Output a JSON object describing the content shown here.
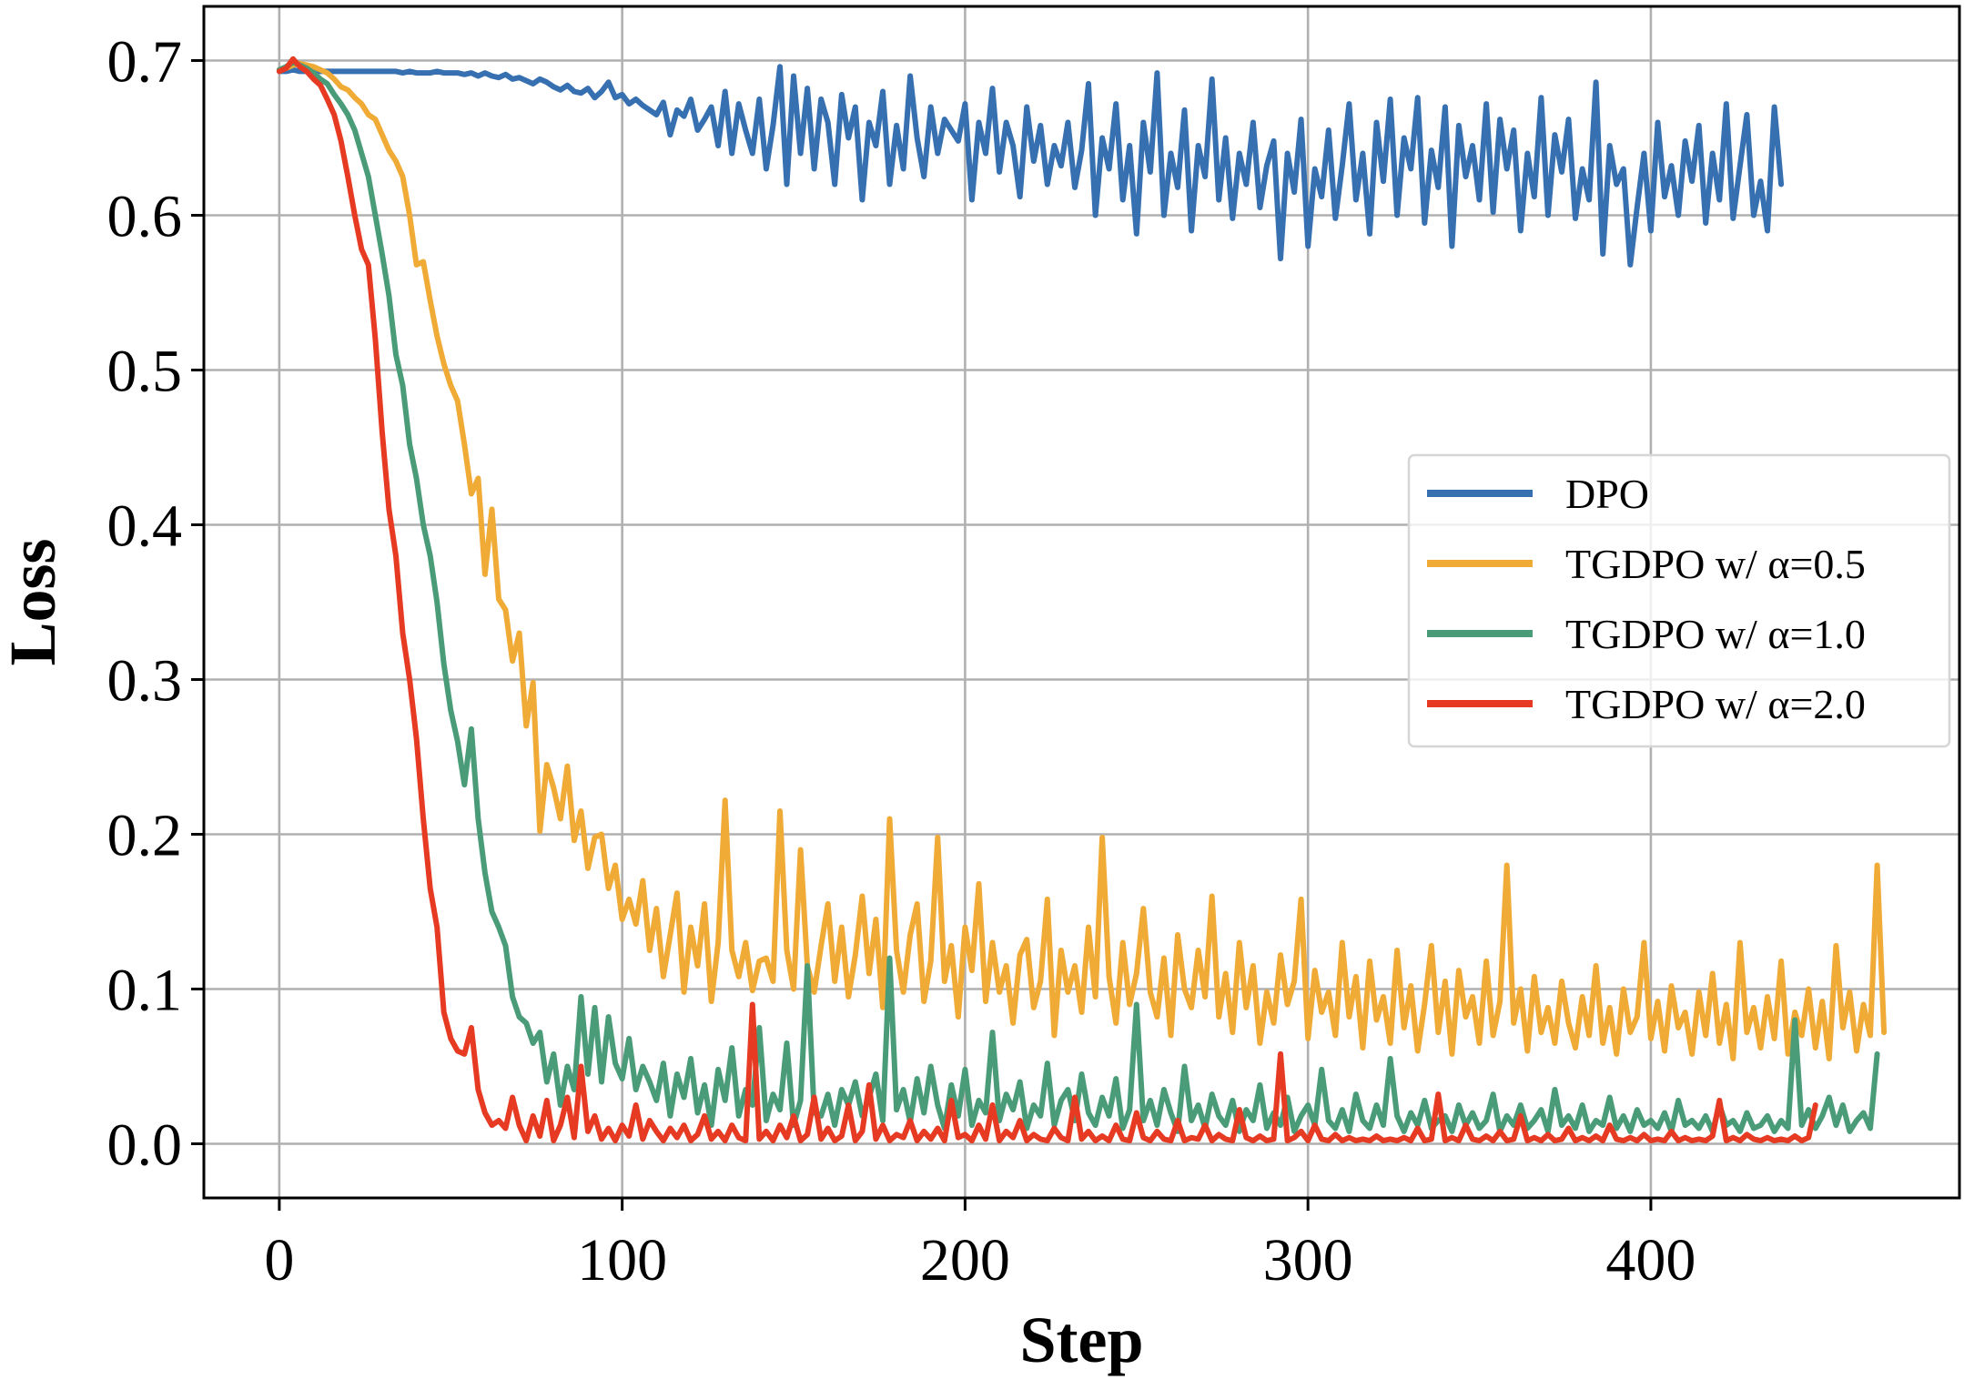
{
  "chart_data": {
    "type": "line",
    "title": "",
    "xlabel": "Step",
    "ylabel": "Loss",
    "xlim": [
      -22,
      490
    ],
    "ylim": [
      -0.035,
      0.735
    ],
    "grid": true,
    "legend_position": "center-right",
    "x_ticks": [
      0,
      100,
      200,
      300,
      400
    ],
    "x_tick_labels": [
      "0",
      "100",
      "200",
      "300",
      "400"
    ],
    "y_ticks": [
      0.0,
      0.1,
      0.2,
      0.3,
      0.4,
      0.5,
      0.6,
      0.7
    ],
    "y_tick_labels": [
      "0.0",
      "0.1",
      "0.2",
      "0.3",
      "0.4",
      "0.5",
      "0.6",
      "0.7"
    ],
    "x_step": 2,
    "series": [
      {
        "name": "DPO",
        "color": "#3670b1",
        "values": [
          0.693,
          0.693,
          0.694,
          0.693,
          0.693,
          0.693,
          0.693,
          0.693,
          0.693,
          0.693,
          0.693,
          0.693,
          0.693,
          0.693,
          0.693,
          0.693,
          0.693,
          0.693,
          0.692,
          0.693,
          0.692,
          0.692,
          0.692,
          0.693,
          0.692,
          0.692,
          0.692,
          0.691,
          0.692,
          0.69,
          0.692,
          0.69,
          0.689,
          0.691,
          0.688,
          0.689,
          0.687,
          0.685,
          0.688,
          0.686,
          0.683,
          0.681,
          0.684,
          0.68,
          0.679,
          0.682,
          0.676,
          0.68,
          0.686,
          0.676,
          0.678,
          0.672,
          0.675,
          0.671,
          0.668,
          0.665,
          0.673,
          0.652,
          0.668,
          0.664,
          0.675,
          0.655,
          0.662,
          0.67,
          0.645,
          0.68,
          0.64,
          0.672,
          0.655,
          0.64,
          0.675,
          0.63,
          0.658,
          0.696,
          0.62,
          0.69,
          0.64,
          0.682,
          0.63,
          0.675,
          0.66,
          0.62,
          0.678,
          0.65,
          0.67,
          0.61,
          0.66,
          0.645,
          0.68,
          0.62,
          0.658,
          0.63,
          0.69,
          0.65,
          0.625,
          0.67,
          0.64,
          0.662,
          0.655,
          0.648,
          0.672,
          0.61,
          0.66,
          0.64,
          0.682,
          0.628,
          0.66,
          0.645,
          0.612,
          0.67,
          0.635,
          0.658,
          0.62,
          0.645,
          0.632,
          0.66,
          0.618,
          0.642,
          0.685,
          0.6,
          0.65,
          0.63,
          0.672,
          0.61,
          0.645,
          0.588,
          0.66,
          0.628,
          0.692,
          0.6,
          0.64,
          0.618,
          0.668,
          0.59,
          0.645,
          0.625,
          0.688,
          0.61,
          0.65,
          0.598,
          0.64,
          0.62,
          0.66,
          0.605,
          0.632,
          0.648,
          0.572,
          0.64,
          0.615,
          0.662,
          0.58,
          0.63,
          0.612,
          0.655,
          0.598,
          0.632,
          0.672,
          0.61,
          0.64,
          0.588,
          0.66,
          0.622,
          0.675,
          0.6,
          0.65,
          0.63,
          0.676,
          0.595,
          0.642,
          0.618,
          0.67,
          0.58,
          0.658,
          0.625,
          0.645,
          0.61,
          0.672,
          0.602,
          0.662,
          0.63,
          0.655,
          0.59,
          0.64,
          0.612,
          0.676,
          0.6,
          0.652,
          0.628,
          0.662,
          0.598,
          0.63,
          0.61,
          0.686,
          0.575,
          0.645,
          0.62,
          0.63,
          0.568,
          0.605,
          0.64,
          0.59,
          0.66,
          0.612,
          0.632,
          0.6,
          0.648,
          0.622,
          0.658,
          0.595,
          0.64,
          0.61,
          0.672,
          0.598,
          0.632,
          0.665,
          0.6,
          0.622,
          0.59,
          0.67,
          0.62
        ]
      },
      {
        "name": "TGDPO w/ α=0.5",
        "color": "#f0aa36",
        "values": [
          0.694,
          0.695,
          0.697,
          0.698,
          0.697,
          0.696,
          0.694,
          0.692,
          0.688,
          0.683,
          0.681,
          0.676,
          0.672,
          0.665,
          0.662,
          0.652,
          0.642,
          0.635,
          0.625,
          0.6,
          0.568,
          0.57,
          0.545,
          0.522,
          0.504,
          0.49,
          0.48,
          0.452,
          0.42,
          0.43,
          0.368,
          0.41,
          0.352,
          0.345,
          0.312,
          0.33,
          0.27,
          0.298,
          0.202,
          0.245,
          0.23,
          0.21,
          0.244,
          0.196,
          0.215,
          0.178,
          0.198,
          0.2,
          0.165,
          0.18,
          0.145,
          0.158,
          0.142,
          0.17,
          0.125,
          0.152,
          0.108,
          0.135,
          0.162,
          0.098,
          0.14,
          0.115,
          0.155,
          0.092,
          0.13,
          0.222,
          0.125,
          0.108,
          0.13,
          0.099,
          0.118,
          0.12,
          0.105,
          0.215,
          0.125,
          0.1,
          0.19,
          0.115,
          0.098,
          0.128,
          0.155,
          0.105,
          0.14,
          0.095,
          0.122,
          0.16,
          0.11,
          0.145,
          0.088,
          0.21,
          0.125,
          0.098,
          0.135,
          0.155,
          0.092,
          0.118,
          0.198,
          0.105,
          0.128,
          0.082,
          0.14,
          0.112,
          0.168,
          0.092,
          0.13,
          0.098,
          0.115,
          0.078,
          0.122,
          0.132,
          0.088,
          0.105,
          0.158,
          0.07,
          0.125,
          0.098,
          0.115,
          0.085,
          0.14,
          0.095,
          0.198,
          0.108,
          0.078,
          0.13,
          0.09,
          0.11,
          0.152,
          0.098,
          0.082,
          0.12,
          0.07,
          0.135,
          0.1,
          0.088,
          0.125,
          0.095,
          0.16,
          0.082,
          0.11,
          0.072,
          0.13,
          0.088,
          0.115,
          0.065,
          0.098,
          0.078,
          0.122,
          0.09,
          0.105,
          0.158,
          0.068,
          0.112,
          0.085,
          0.098,
          0.07,
          0.13,
          0.082,
          0.108,
          0.062,
          0.118,
          0.08,
          0.095,
          0.065,
          0.125,
          0.075,
          0.102,
          0.06,
          0.09,
          0.128,
          0.072,
          0.105,
          0.058,
          0.112,
          0.082,
          0.095,
          0.065,
          0.118,
          0.07,
          0.092,
          0.18,
          0.078,
          0.1,
          0.06,
          0.108,
          0.072,
          0.088,
          0.065,
          0.105,
          0.078,
          0.062,
          0.095,
          0.07,
          0.115,
          0.065,
          0.088,
          0.058,
          0.1,
          0.072,
          0.082,
          0.13,
          0.068,
          0.092,
          0.06,
          0.102,
          0.075,
          0.085,
          0.058,
          0.098,
          0.07,
          0.11,
          0.065,
          0.09,
          0.055,
          0.13,
          0.072,
          0.088,
          0.062,
          0.095,
          0.068,
          0.118,
          0.058,
          0.085,
          0.07,
          0.1,
          0.062,
          0.092,
          0.055,
          0.128,
          0.075,
          0.098,
          0.06,
          0.09,
          0.07,
          0.18,
          0.072
        ]
      },
      {
        "name": "TGDPO w/ α=1.0",
        "color": "#4a9c79",
        "values": [
          0.694,
          0.696,
          0.699,
          0.697,
          0.695,
          0.692,
          0.688,
          0.685,
          0.678,
          0.672,
          0.665,
          0.655,
          0.64,
          0.625,
          0.6,
          0.575,
          0.548,
          0.51,
          0.49,
          0.452,
          0.43,
          0.4,
          0.38,
          0.35,
          0.31,
          0.28,
          0.26,
          0.232,
          0.268,
          0.21,
          0.175,
          0.15,
          0.14,
          0.128,
          0.095,
          0.082,
          0.078,
          0.065,
          0.072,
          0.04,
          0.058,
          0.025,
          0.05,
          0.035,
          0.095,
          0.045,
          0.088,
          0.04,
          0.082,
          0.052,
          0.042,
          0.068,
          0.035,
          0.05,
          0.04,
          0.028,
          0.052,
          0.018,
          0.045,
          0.03,
          0.055,
          0.02,
          0.038,
          0.012,
          0.048,
          0.028,
          0.062,
          0.018,
          0.035,
          0.025,
          0.075,
          0.015,
          0.032,
          0.022,
          0.065,
          0.012,
          0.028,
          0.115,
          0.02,
          0.018,
          0.032,
          0.012,
          0.035,
          0.025,
          0.04,
          0.018,
          0.03,
          0.045,
          0.015,
          0.12,
          0.022,
          0.035,
          0.014,
          0.042,
          0.02,
          0.05,
          0.025,
          0.01,
          0.038,
          0.018,
          0.048,
          0.012,
          0.028,
          0.02,
          0.072,
          0.015,
          0.032,
          0.022,
          0.04,
          0.01,
          0.025,
          0.018,
          0.052,
          0.012,
          0.028,
          0.035,
          0.015,
          0.045,
          0.02,
          0.012,
          0.03,
          0.018,
          0.042,
          0.01,
          0.022,
          0.09,
          0.015,
          0.028,
          0.012,
          0.035,
          0.02,
          0.008,
          0.05,
          0.015,
          0.025,
          0.01,
          0.032,
          0.018,
          0.012,
          0.028,
          0.008,
          0.022,
          0.015,
          0.038,
          0.01,
          0.02,
          0.012,
          0.03,
          0.008,
          0.018,
          0.025,
          0.012,
          0.048,
          0.015,
          0.01,
          0.022,
          0.008,
          0.032,
          0.015,
          0.01,
          0.025,
          0.012,
          0.055,
          0.018,
          0.008,
          0.02,
          0.012,
          0.028,
          0.01,
          0.015,
          0.018,
          0.008,
          0.025,
          0.012,
          0.02,
          0.01,
          0.015,
          0.032,
          0.008,
          0.018,
          0.012,
          0.025,
          0.01,
          0.015,
          0.022,
          0.008,
          0.035,
          0.012,
          0.018,
          0.01,
          0.025,
          0.008,
          0.015,
          0.012,
          0.03,
          0.01,
          0.018,
          0.008,
          0.022,
          0.012,
          0.015,
          0.01,
          0.02,
          0.008,
          0.028,
          0.012,
          0.015,
          0.01,
          0.018,
          0.008,
          0.025,
          0.012,
          0.015,
          0.008,
          0.02,
          0.01,
          0.012,
          0.018,
          0.008,
          0.015,
          0.01,
          0.08,
          0.012,
          0.022,
          0.01,
          0.018,
          0.03,
          0.012,
          0.025,
          0.008,
          0.015,
          0.02,
          0.01,
          0.058
        ]
      },
      {
        "name": "TGDPO w/ α=2.0",
        "color": "#e63a22",
        "values": [
          0.693,
          0.695,
          0.701,
          0.696,
          0.693,
          0.688,
          0.684,
          0.675,
          0.665,
          0.648,
          0.625,
          0.6,
          0.578,
          0.568,
          0.52,
          0.46,
          0.41,
          0.38,
          0.33,
          0.3,
          0.262,
          0.21,
          0.165,
          0.14,
          0.085,
          0.068,
          0.06,
          0.058,
          0.075,
          0.035,
          0.02,
          0.012,
          0.015,
          0.01,
          0.03,
          0.012,
          0.002,
          0.018,
          0.005,
          0.028,
          0.002,
          0.012,
          0.03,
          0.004,
          0.05,
          0.008,
          0.018,
          0.003,
          0.01,
          0.002,
          0.012,
          0.005,
          0.025,
          0.003,
          0.015,
          0.008,
          0.002,
          0.01,
          0.004,
          0.012,
          0.002,
          0.006,
          0.018,
          0.003,
          0.008,
          0.002,
          0.012,
          0.004,
          0.002,
          0.09,
          0.003,
          0.008,
          0.002,
          0.012,
          0.004,
          0.018,
          0.002,
          0.006,
          0.03,
          0.003,
          0.01,
          0.002,
          0.005,
          0.025,
          0.002,
          0.008,
          0.038,
          0.003,
          0.012,
          0.002,
          0.006,
          0.004,
          0.015,
          0.002,
          0.008,
          0.003,
          0.01,
          0.002,
          0.028,
          0.004,
          0.006,
          0.002,
          0.012,
          0.003,
          0.025,
          0.002,
          0.008,
          0.004,
          0.015,
          0.002,
          0.006,
          0.003,
          0.002,
          0.01,
          0.004,
          0.002,
          0.03,
          0.003,
          0.008,
          0.002,
          0.005,
          0.002,
          0.012,
          0.003,
          0.002,
          0.02,
          0.004,
          0.002,
          0.008,
          0.003,
          0.002,
          0.015,
          0.002,
          0.004,
          0.003,
          0.012,
          0.002,
          0.006,
          0.003,
          0.002,
          0.022,
          0.004,
          0.002,
          0.005,
          0.002,
          0.003,
          0.058,
          0.002,
          0.004,
          0.008,
          0.002,
          0.012,
          0.003,
          0.002,
          0.006,
          0.002,
          0.004,
          0.002,
          0.003,
          0.002,
          0.005,
          0.002,
          0.003,
          0.002,
          0.004,
          0.002,
          0.01,
          0.002,
          0.003,
          0.032,
          0.002,
          0.004,
          0.002,
          0.012,
          0.003,
          0.002,
          0.005,
          0.002,
          0.008,
          0.002,
          0.003,
          0.018,
          0.002,
          0.004,
          0.002,
          0.006,
          0.002,
          0.003,
          0.01,
          0.002,
          0.004,
          0.002,
          0.005,
          0.002,
          0.012,
          0.003,
          0.002,
          0.004,
          0.002,
          0.006,
          0.002,
          0.003,
          0.002,
          0.008,
          0.002,
          0.004,
          0.002,
          0.003,
          0.002,
          0.005,
          0.028,
          0.002,
          0.004,
          0.002,
          0.006,
          0.003,
          0.002,
          0.004,
          0.002,
          0.003,
          0.002,
          0.005,
          0.002,
          0.004,
          0.025
        ]
      }
    ]
  }
}
